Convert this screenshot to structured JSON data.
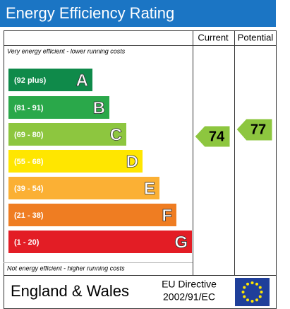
{
  "title": "Energy Efficiency Rating",
  "columns": [
    "Current",
    "Potential"
  ],
  "top_note": "Very energy efficient - lower running costs",
  "bands": [
    {
      "range": "(92 plus)",
      "letter": "A",
      "color": "#0f8a4a"
    },
    {
      "range": "(81 - 91)",
      "letter": "B",
      "color": "#2aa84a"
    },
    {
      "range": "(69 - 80)",
      "letter": "C",
      "color": "#8dc63f"
    },
    {
      "range": "(55 - 68)",
      "letter": "D",
      "color": "#ffe600"
    },
    {
      "range": "(39 - 54)",
      "letter": "E",
      "color": "#fbb034"
    },
    {
      "range": "(21 - 38)",
      "letter": "F",
      "color": "#ef7d22"
    },
    {
      "range": "(1 - 20)",
      "letter": "G",
      "color": "#e31d25"
    }
  ],
  "current": {
    "value": 74,
    "color": "#8dc63f"
  },
  "potential": {
    "value": 77,
    "color": "#8dc63f"
  },
  "bottom_note": "Not energy efficient - higher running costs",
  "footer": {
    "country": "England & Wales",
    "directive": [
      "EU Directive",
      "2002/91/EC"
    ]
  }
}
